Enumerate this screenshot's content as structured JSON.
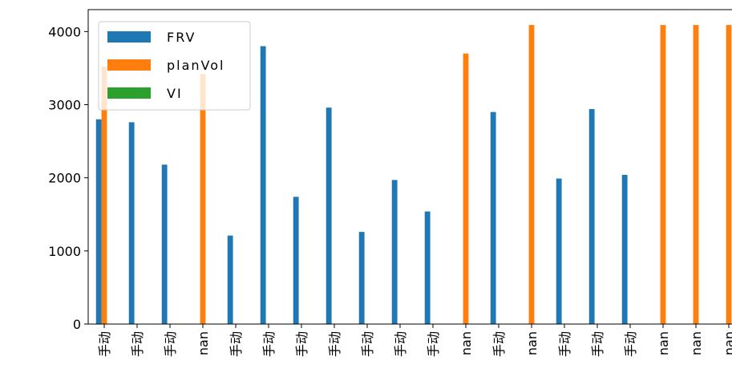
{
  "chart_data": {
    "type": "bar",
    "categories": [
      "手动",
      "手动",
      "手动",
      "nan",
      "手动",
      "手动",
      "手动",
      "手动",
      "手动",
      "手动",
      "手动",
      "nan",
      "手动",
      "nan",
      "手动",
      "手动",
      "手动",
      "nan",
      "nan",
      "nan"
    ],
    "series": [
      {
        "name": "FRV",
        "color": "#1f77b4",
        "values": [
          2800,
          2760,
          2180,
          null,
          1210,
          3800,
          1740,
          2960,
          1260,
          1970,
          1540,
          null,
          2900,
          null,
          1990,
          2940,
          2040,
          null,
          null,
          null
        ]
      },
      {
        "name": "planVol",
        "color": "#ff7f0e",
        "values": [
          3520,
          null,
          null,
          3420,
          null,
          null,
          null,
          null,
          null,
          null,
          null,
          3700,
          null,
          4090,
          null,
          null,
          null,
          4090,
          4090,
          4090
        ]
      },
      {
        "name": "VI",
        "color": "#2ca02c",
        "values": [
          null,
          null,
          null,
          null,
          null,
          null,
          null,
          null,
          null,
          null,
          null,
          null,
          null,
          null,
          null,
          null,
          null,
          null,
          null,
          null
        ]
      }
    ],
    "ylim": [
      0,
      4300
    ],
    "yticks": [
      0,
      1000,
      2000,
      3000,
      4000
    ],
    "legend": "upper left"
  }
}
